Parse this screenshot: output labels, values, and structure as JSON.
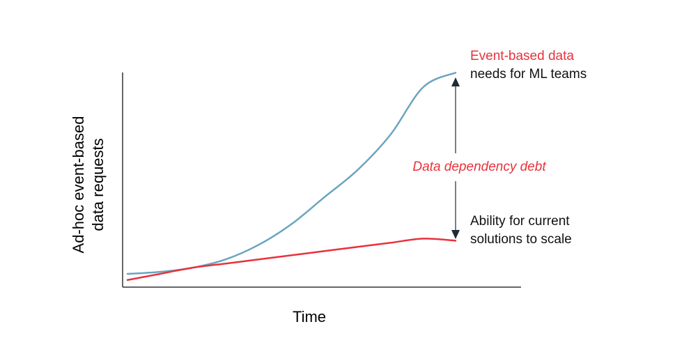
{
  "chart_data": {
    "type": "line",
    "title": "",
    "xlabel": "Time",
    "ylabel_lines": [
      "Ad-hoc event-based",
      "data requests"
    ],
    "grid": false,
    "legend": "none",
    "x": [
      0,
      0.1,
      0.2,
      0.3,
      0.4,
      0.5,
      0.6,
      0.7,
      0.8,
      0.9,
      1.0
    ],
    "series": [
      {
        "color": "#6aa4bf",
        "values": [
          0.03,
          0.04,
          0.06,
          0.1,
          0.17,
          0.27,
          0.4,
          0.53,
          0.7,
          0.93,
          1.0
        ]
      },
      {
        "color": "#e8323c",
        "values": [
          0.0,
          0.03,
          0.06,
          0.08,
          0.1,
          0.12,
          0.14,
          0.16,
          0.18,
          0.2,
          0.19
        ]
      }
    ],
    "annotations": {
      "top_line1": "Event-based data",
      "top_line2": "needs for ML teams",
      "gap_label": "Data dependency debt",
      "bottom_line1": "Ability for current",
      "bottom_line2": "solutions to scale"
    },
    "colors": {
      "demand": "#6aa4bf",
      "capacity": "#e8323c",
      "highlight_text": "#e8323c",
      "axis": "#333333",
      "arrow": "#1f2a36"
    }
  }
}
